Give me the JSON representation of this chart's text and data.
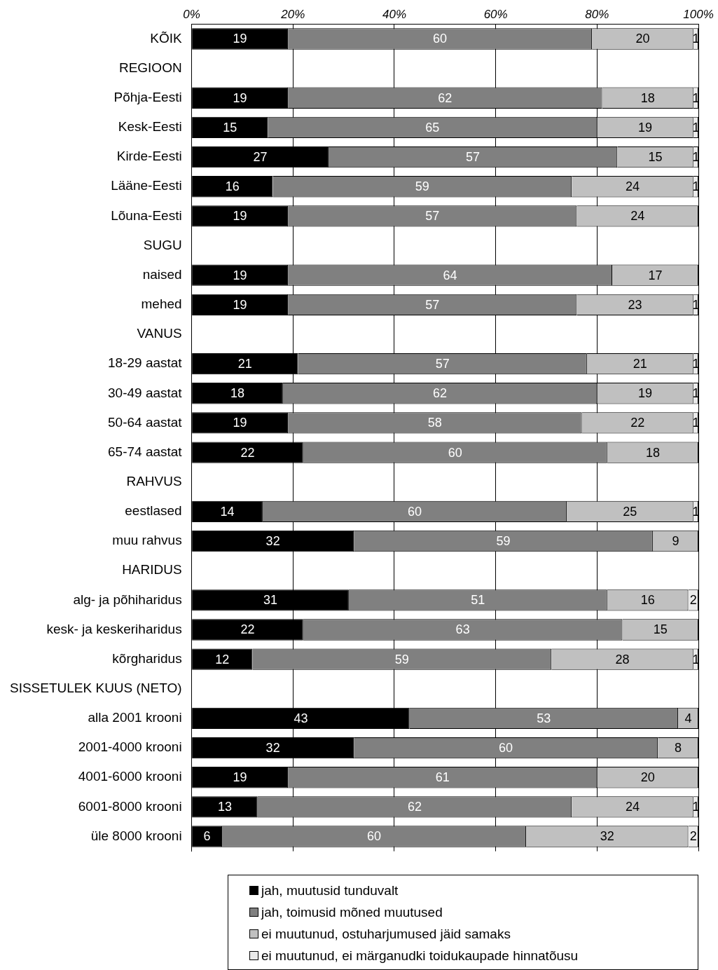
{
  "chart_data": {
    "type": "bar",
    "orientation": "horizontal",
    "stacked": true,
    "data_labels": true,
    "grid": "x",
    "legend": "bottom",
    "categories": [
      "KÕIK",
      "REGIOON",
      "Põhja-Eesti",
      "Kesk-Eesti",
      "Kirde-Eesti",
      "Lääne-Eesti",
      "Lõuna-Eesti",
      "SUGU",
      "naised",
      "mehed",
      "VANUS",
      "18-29 aastat",
      "30-49 aastat",
      "50-64 aastat",
      "65-74 aastat",
      "RAHVUS",
      "eestlased",
      "muu rahvus",
      "HARIDUS",
      "alg- ja põhiharidus",
      "kesk- ja keskeriharidus",
      "kõrgharidus",
      "SISSETULEK KUUS (NETO)",
      "alla 2001 krooni",
      "2001-4000 krooni",
      "4001-6000 krooni",
      "6001-8000 krooni",
      "üle 8000 krooni"
    ],
    "xlim": [
      0,
      100
    ],
    "xticks": [
      {
        "value": 0,
        "label": "0%"
      },
      {
        "value": 20,
        "label": "20%"
      },
      {
        "value": 40,
        "label": "40%"
      },
      {
        "value": 60,
        "label": "60%"
      },
      {
        "value": 80,
        "label": "80%"
      },
      {
        "value": 100,
        "label": "100%"
      }
    ],
    "series": [
      {
        "name": "jah, muutusid tunduvalt",
        "color": "#000000",
        "values": [
          19,
          null,
          19,
          15,
          27,
          16,
          19,
          null,
          19,
          19,
          null,
          21,
          18,
          19,
          22,
          null,
          14,
          32,
          null,
          31,
          22,
          12,
          null,
          43,
          32,
          19,
          13,
          6
        ]
      },
      {
        "name": "jah, toimusid mõned muutused",
        "color": "#808080",
        "values": [
          60,
          null,
          62,
          65,
          57,
          59,
          57,
          null,
          64,
          57,
          null,
          57,
          62,
          58,
          60,
          null,
          60,
          59,
          null,
          51,
          63,
          59,
          null,
          53,
          60,
          61,
          62,
          60
        ]
      },
      {
        "name": "ei muutunud, ostuharjumused jäid samaks",
        "color": "#c0c0c0",
        "values": [
          20,
          null,
          18,
          19,
          15,
          24,
          24,
          null,
          17,
          23,
          null,
          21,
          19,
          22,
          18,
          null,
          25,
          9,
          null,
          16,
          15,
          28,
          null,
          4,
          8,
          20,
          24,
          32
        ]
      },
      {
        "name": "ei muutunud, ei märganudki toidukaupade hinnatõusu",
        "color": "#eaeaea",
        "values": [
          1,
          null,
          1,
          1,
          1,
          1,
          null,
          null,
          null,
          1,
          null,
          1,
          1,
          1,
          null,
          null,
          1,
          null,
          null,
          2,
          null,
          1,
          null,
          null,
          null,
          null,
          1,
          2
        ]
      }
    ]
  }
}
